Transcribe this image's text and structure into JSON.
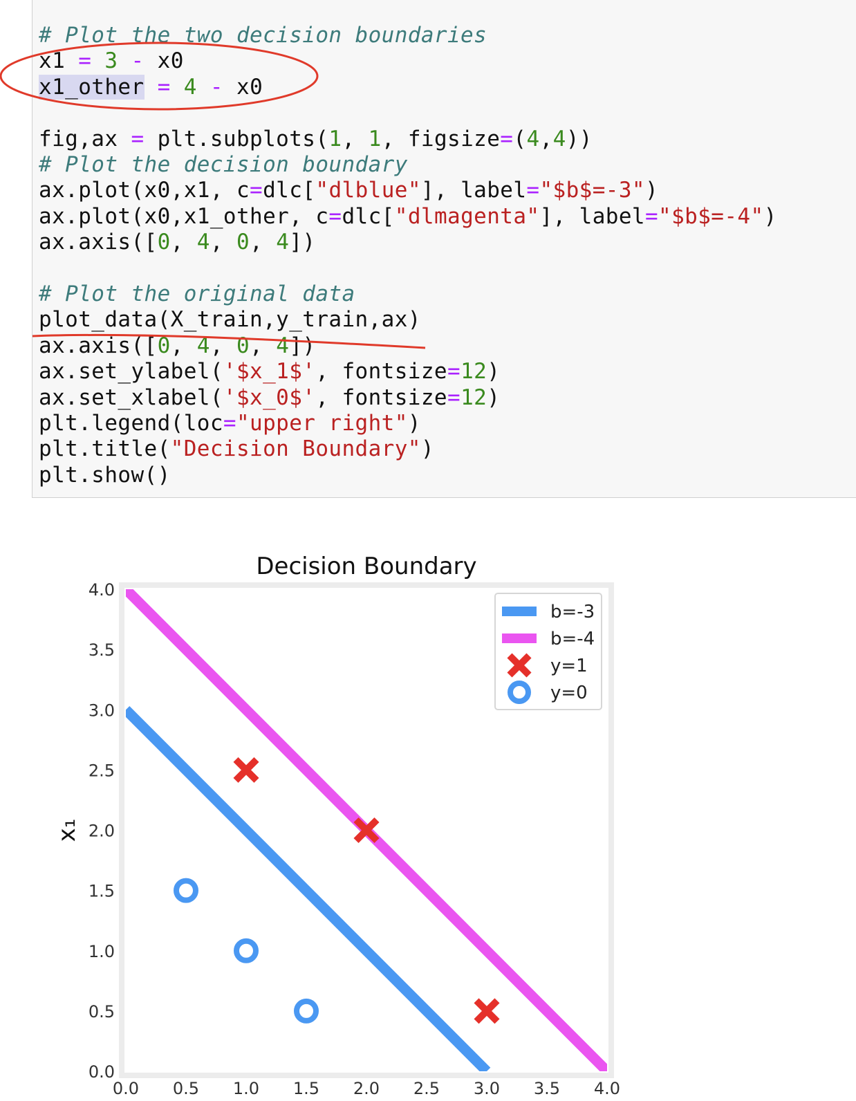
{
  "notebook": {
    "code_lines": [
      [
        {
          "t": "# Plot the two decision boundaries",
          "c": "cm"
        }
      ],
      [
        {
          "t": "x1 ",
          "c": ""
        },
        {
          "t": "=",
          "c": "op"
        },
        {
          "t": " ",
          "c": ""
        },
        {
          "t": "3",
          "c": "num"
        },
        {
          "t": " ",
          "c": ""
        },
        {
          "t": "-",
          "c": "op"
        },
        {
          "t": " x0",
          "c": ""
        }
      ],
      [
        {
          "t": "x1_other",
          "c": "hl"
        },
        {
          "t": " ",
          "c": ""
        },
        {
          "t": "=",
          "c": "op"
        },
        {
          "t": " ",
          "c": ""
        },
        {
          "t": "4",
          "c": "num"
        },
        {
          "t": " ",
          "c": ""
        },
        {
          "t": "-",
          "c": "op"
        },
        {
          "t": " x0",
          "c": ""
        }
      ],
      [],
      [
        {
          "t": "fig,ax ",
          "c": ""
        },
        {
          "t": "=",
          "c": "op"
        },
        {
          "t": " plt.subplots(",
          "c": ""
        },
        {
          "t": "1",
          "c": "num"
        },
        {
          "t": ", ",
          "c": ""
        },
        {
          "t": "1",
          "c": "num"
        },
        {
          "t": ", figsize",
          "c": ""
        },
        {
          "t": "=",
          "c": "op"
        },
        {
          "t": "(",
          "c": ""
        },
        {
          "t": "4",
          "c": "num"
        },
        {
          "t": ",",
          "c": ""
        },
        {
          "t": "4",
          "c": "num"
        },
        {
          "t": "))",
          "c": ""
        }
      ],
      [
        {
          "t": "# Plot the decision boundary",
          "c": "cm"
        }
      ],
      [
        {
          "t": "ax.plot(x0,x1, c",
          "c": ""
        },
        {
          "t": "=",
          "c": "op"
        },
        {
          "t": "dlc[",
          "c": ""
        },
        {
          "t": "\"dlblue\"",
          "c": "str"
        },
        {
          "t": "], label",
          "c": ""
        },
        {
          "t": "=",
          "c": "op"
        },
        {
          "t": "\"$b$=-3\"",
          "c": "str"
        },
        {
          "t": ")",
          "c": ""
        }
      ],
      [
        {
          "t": "ax.plot(x0,x1_other, c",
          "c": ""
        },
        {
          "t": "=",
          "c": "op"
        },
        {
          "t": "dlc[",
          "c": ""
        },
        {
          "t": "\"dlmagenta\"",
          "c": "str"
        },
        {
          "t": "], label",
          "c": ""
        },
        {
          "t": "=",
          "c": "op"
        },
        {
          "t": "\"$b$=-4\"",
          "c": "str"
        },
        {
          "t": ")",
          "c": ""
        }
      ],
      [
        {
          "t": "ax.axis([",
          "c": ""
        },
        {
          "t": "0",
          "c": "num"
        },
        {
          "t": ", ",
          "c": ""
        },
        {
          "t": "4",
          "c": "num"
        },
        {
          "t": ", ",
          "c": ""
        },
        {
          "t": "0",
          "c": "num"
        },
        {
          "t": ", ",
          "c": ""
        },
        {
          "t": "4",
          "c": "num"
        },
        {
          "t": "])",
          "c": ""
        }
      ],
      [],
      [
        {
          "t": "# Plot the original data",
          "c": "cm"
        }
      ],
      [
        {
          "t": "plot_data(X_train,y_train,ax)",
          "c": ""
        }
      ],
      [
        {
          "t": "ax.axis([",
          "c": ""
        },
        {
          "t": "0",
          "c": "num"
        },
        {
          "t": ", ",
          "c": ""
        },
        {
          "t": "4",
          "c": "num"
        },
        {
          "t": ", ",
          "c": ""
        },
        {
          "t": "0",
          "c": "num"
        },
        {
          "t": ", ",
          "c": ""
        },
        {
          "t": "4",
          "c": "num"
        },
        {
          "t": "])",
          "c": ""
        }
      ],
      [
        {
          "t": "ax.set_ylabel(",
          "c": ""
        },
        {
          "t": "'$x_1$'",
          "c": "str"
        },
        {
          "t": ", fontsize",
          "c": ""
        },
        {
          "t": "=",
          "c": "op"
        },
        {
          "t": "12",
          "c": "num"
        },
        {
          "t": ")",
          "c": ""
        }
      ],
      [
        {
          "t": "ax.set_xlabel(",
          "c": ""
        },
        {
          "t": "'$x_0$'",
          "c": "str"
        },
        {
          "t": ", fontsize",
          "c": ""
        },
        {
          "t": "=",
          "c": "op"
        },
        {
          "t": "12",
          "c": "num"
        },
        {
          "t": ")",
          "c": ""
        }
      ],
      [
        {
          "t": "plt.legend(loc",
          "c": ""
        },
        {
          "t": "=",
          "c": "op"
        },
        {
          "t": "\"upper right\"",
          "c": "str"
        },
        {
          "t": ")",
          "c": ""
        }
      ],
      [
        {
          "t": "plt.title(",
          "c": ""
        },
        {
          "t": "\"Decision Boundary\"",
          "c": "str"
        },
        {
          "t": ")",
          "c": ""
        }
      ],
      [
        {
          "t": "plt.show()",
          "c": ""
        }
      ]
    ],
    "annotation_color": "#e03a2a"
  },
  "colors": {
    "comment": "#3d7b7b",
    "operator": "#aa22ff",
    "number": "#3a8a1e",
    "string": "#ba2121",
    "dlblue": "#4a98f2",
    "dlmagenta": "#ea55f0",
    "dlred": "#e5302a"
  },
  "chart_data": {
    "type": "line",
    "title": "Decision Boundary",
    "xlabel": "",
    "ylabel": "x₁",
    "xlim": [
      0,
      4
    ],
    "ylim": [
      0,
      4
    ],
    "x_ticks": [
      "0.0",
      "0.5",
      "1.0",
      "1.5",
      "2.0",
      "2.5",
      "3.0",
      "3.5",
      "4.0"
    ],
    "y_ticks": [
      "0.0",
      "0.5",
      "1.0",
      "1.5",
      "2.0",
      "2.5",
      "3.0",
      "3.5",
      "4.0"
    ],
    "grid": false,
    "legend_placement": "upper right",
    "legend": [
      {
        "label": "b=-3",
        "marker": "line",
        "color": "#4a98f2"
      },
      {
        "label": "b=-4",
        "marker": "line",
        "color": "#ea55f0"
      },
      {
        "label": "y=1",
        "marker": "x",
        "color": "#e5302a"
      },
      {
        "label": "y=0",
        "marker": "o",
        "color": "#4a98f2"
      }
    ],
    "series": [
      {
        "name": "b=-3",
        "kind": "line",
        "color": "#4a98f2",
        "x": [
          0,
          3
        ],
        "y": [
          3,
          0
        ]
      },
      {
        "name": "b=-4",
        "kind": "line",
        "color": "#ea55f0",
        "x": [
          0,
          4
        ],
        "y": [
          4,
          0
        ]
      }
    ],
    "points": [
      {
        "x": 1.0,
        "y": 2.5,
        "label": "y=1"
      },
      {
        "x": 2.0,
        "y": 2.0,
        "label": "y=1"
      },
      {
        "x": 3.0,
        "y": 0.5,
        "label": "y=1"
      },
      {
        "x": 0.5,
        "y": 1.5,
        "label": "y=0"
      },
      {
        "x": 1.0,
        "y": 1.0,
        "label": "y=0"
      },
      {
        "x": 1.5,
        "y": 0.5,
        "label": "y=0"
      }
    ]
  }
}
